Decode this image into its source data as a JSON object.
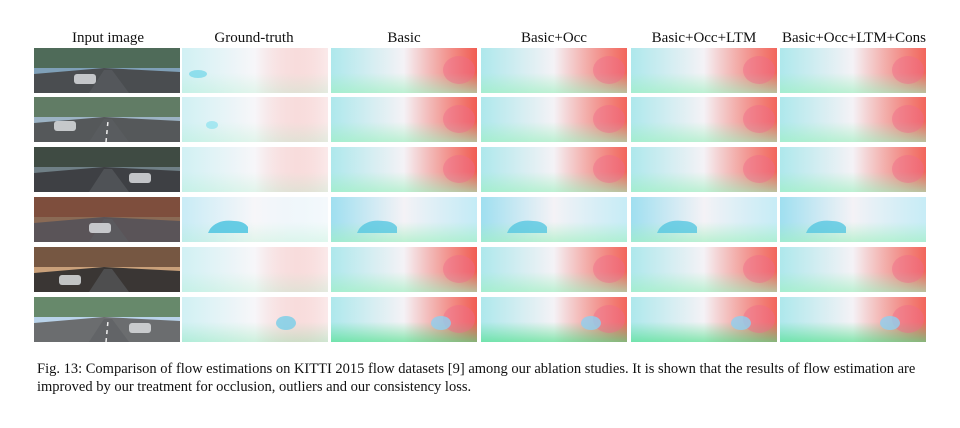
{
  "figure": {
    "columns": [
      {
        "id": "input",
        "label": "Input image"
      },
      {
        "id": "gt",
        "label": "Ground-truth"
      },
      {
        "id": "basic",
        "label": "Basic"
      },
      {
        "id": "occ",
        "label": "Basic+Occ"
      },
      {
        "id": "ltm",
        "label": "Basic+Occ+LTM"
      },
      {
        "id": "cons",
        "label": "Basic+Occ+LTM+Cons"
      }
    ],
    "rows": 6,
    "caption": "Fig. 13: Comparison of flow estimations on  KITTI 2015 flow datasets [9] among our ablation studies. It is shown that the results of flow estimation are improved by our  treatment for occlusion, outliers and our consistency loss."
  }
}
